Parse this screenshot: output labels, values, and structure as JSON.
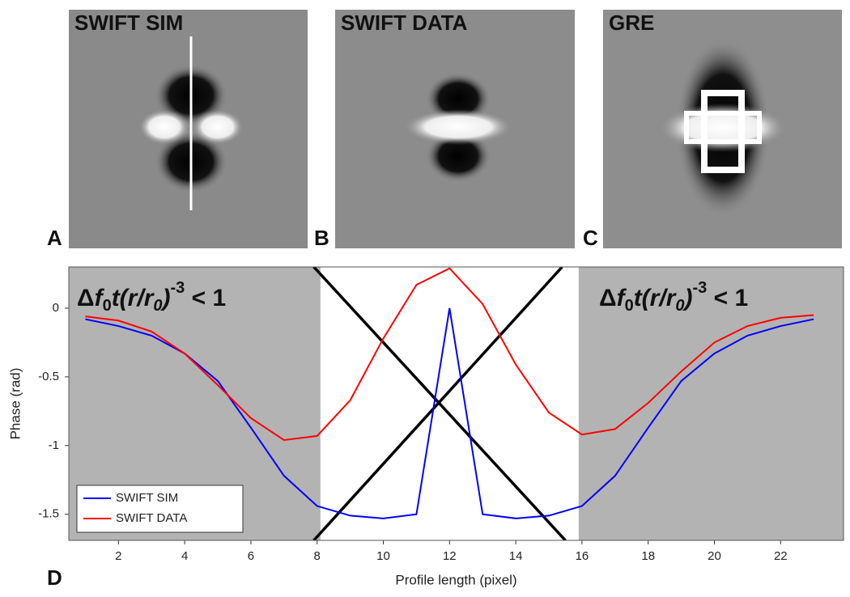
{
  "panels": {
    "image_titles": [
      "SWIFT SIM",
      "SWIFT DATA",
      "GRE"
    ],
    "letters": [
      "A",
      "B",
      "C",
      "D"
    ]
  },
  "chart_data": {
    "type": "line",
    "x_label": "Profile length (pixel)",
    "y_label": "Phase (rad)",
    "annotation_parts": [
      "Δ",
      "f",
      "0",
      "t(",
      "r",
      "/",
      "r",
      "0",
      ")",
      "-3",
      " < 1"
    ],
    "x": [
      1,
      2,
      3,
      4,
      5,
      6,
      7,
      8,
      9,
      10,
      11,
      12,
      13,
      14,
      15,
      16,
      17,
      18,
      19,
      20,
      21,
      22,
      23
    ],
    "series": [
      {
        "name": "SWIFT SIM",
        "color": "#0000ff",
        "values": [
          -0.08,
          -0.13,
          -0.2,
          -0.33,
          -0.53,
          -0.87,
          -1.22,
          -1.44,
          -1.51,
          -1.53,
          -1.5,
          0,
          -1.5,
          -1.53,
          -1.51,
          -1.44,
          -1.22,
          -0.87,
          -0.53,
          -0.33,
          -0.2,
          -0.13,
          -0.08
        ]
      },
      {
        "name": "SWIFT DATA",
        "color": "#ff0000",
        "values": [
          -0.06,
          -0.09,
          -0.17,
          -0.33,
          -0.56,
          -0.8,
          -0.96,
          -0.93,
          -0.67,
          -0.22,
          0.17,
          0.29,
          0.03,
          -0.41,
          -0.76,
          -0.92,
          -0.88,
          -0.69,
          -0.46,
          -0.25,
          -0.13,
          -0.07,
          -0.05
        ]
      }
    ],
    "shaded_regions": [
      [
        0.5,
        8.1
      ],
      [
        15.9,
        23.9
      ]
    ],
    "shade_color": "#b3b3b3",
    "cross_lines": [
      {
        "x": [
          7.9,
          15.4
        ],
        "y": [
          -1.69,
          0.3
        ]
      },
      {
        "x": [
          7.9,
          15.5
        ],
        "y": [
          0.3,
          -1.69
        ]
      }
    ],
    "xlim": [
      0.5,
      23.9
    ],
    "ylim": [
      -1.69,
      0.3
    ],
    "xticks": [
      2,
      4,
      6,
      8,
      10,
      12,
      14,
      16,
      18,
      20,
      22
    ],
    "yticks": [
      0,
      -0.5,
      -1,
      -1.5
    ],
    "legend": "bottom-left"
  }
}
